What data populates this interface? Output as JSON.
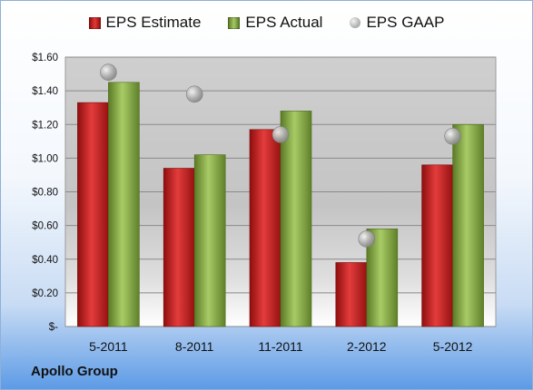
{
  "chart_data": {
    "type": "bar",
    "categories": [
      "5-2011",
      "8-2011",
      "11-2011",
      "2-2012",
      "5-2012"
    ],
    "series": [
      {
        "name": "EPS Estimate",
        "kind": "bar",
        "color": "#cc1f1f",
        "values": [
          1.33,
          0.94,
          1.17,
          0.38,
          0.96
        ]
      },
      {
        "name": "EPS Actual",
        "kind": "bar",
        "color": "#8db04a",
        "values": [
          1.45,
          1.02,
          1.28,
          0.58,
          1.2
        ]
      },
      {
        "name": "EPS GAAP",
        "kind": "marker",
        "color": "#b0b0b0",
        "values": [
          1.51,
          1.38,
          1.14,
          0.52,
          1.13
        ]
      }
    ],
    "yticks": [
      "$-",
      "$0.20",
      "$0.40",
      "$0.60",
      "$0.80",
      "$1.00",
      "$1.20",
      "$1.40",
      "$1.60"
    ],
    "ylim": [
      0,
      1.6
    ],
    "grid": true,
    "legend_position": "top"
  },
  "footer": {
    "company": "Apollo Group"
  }
}
